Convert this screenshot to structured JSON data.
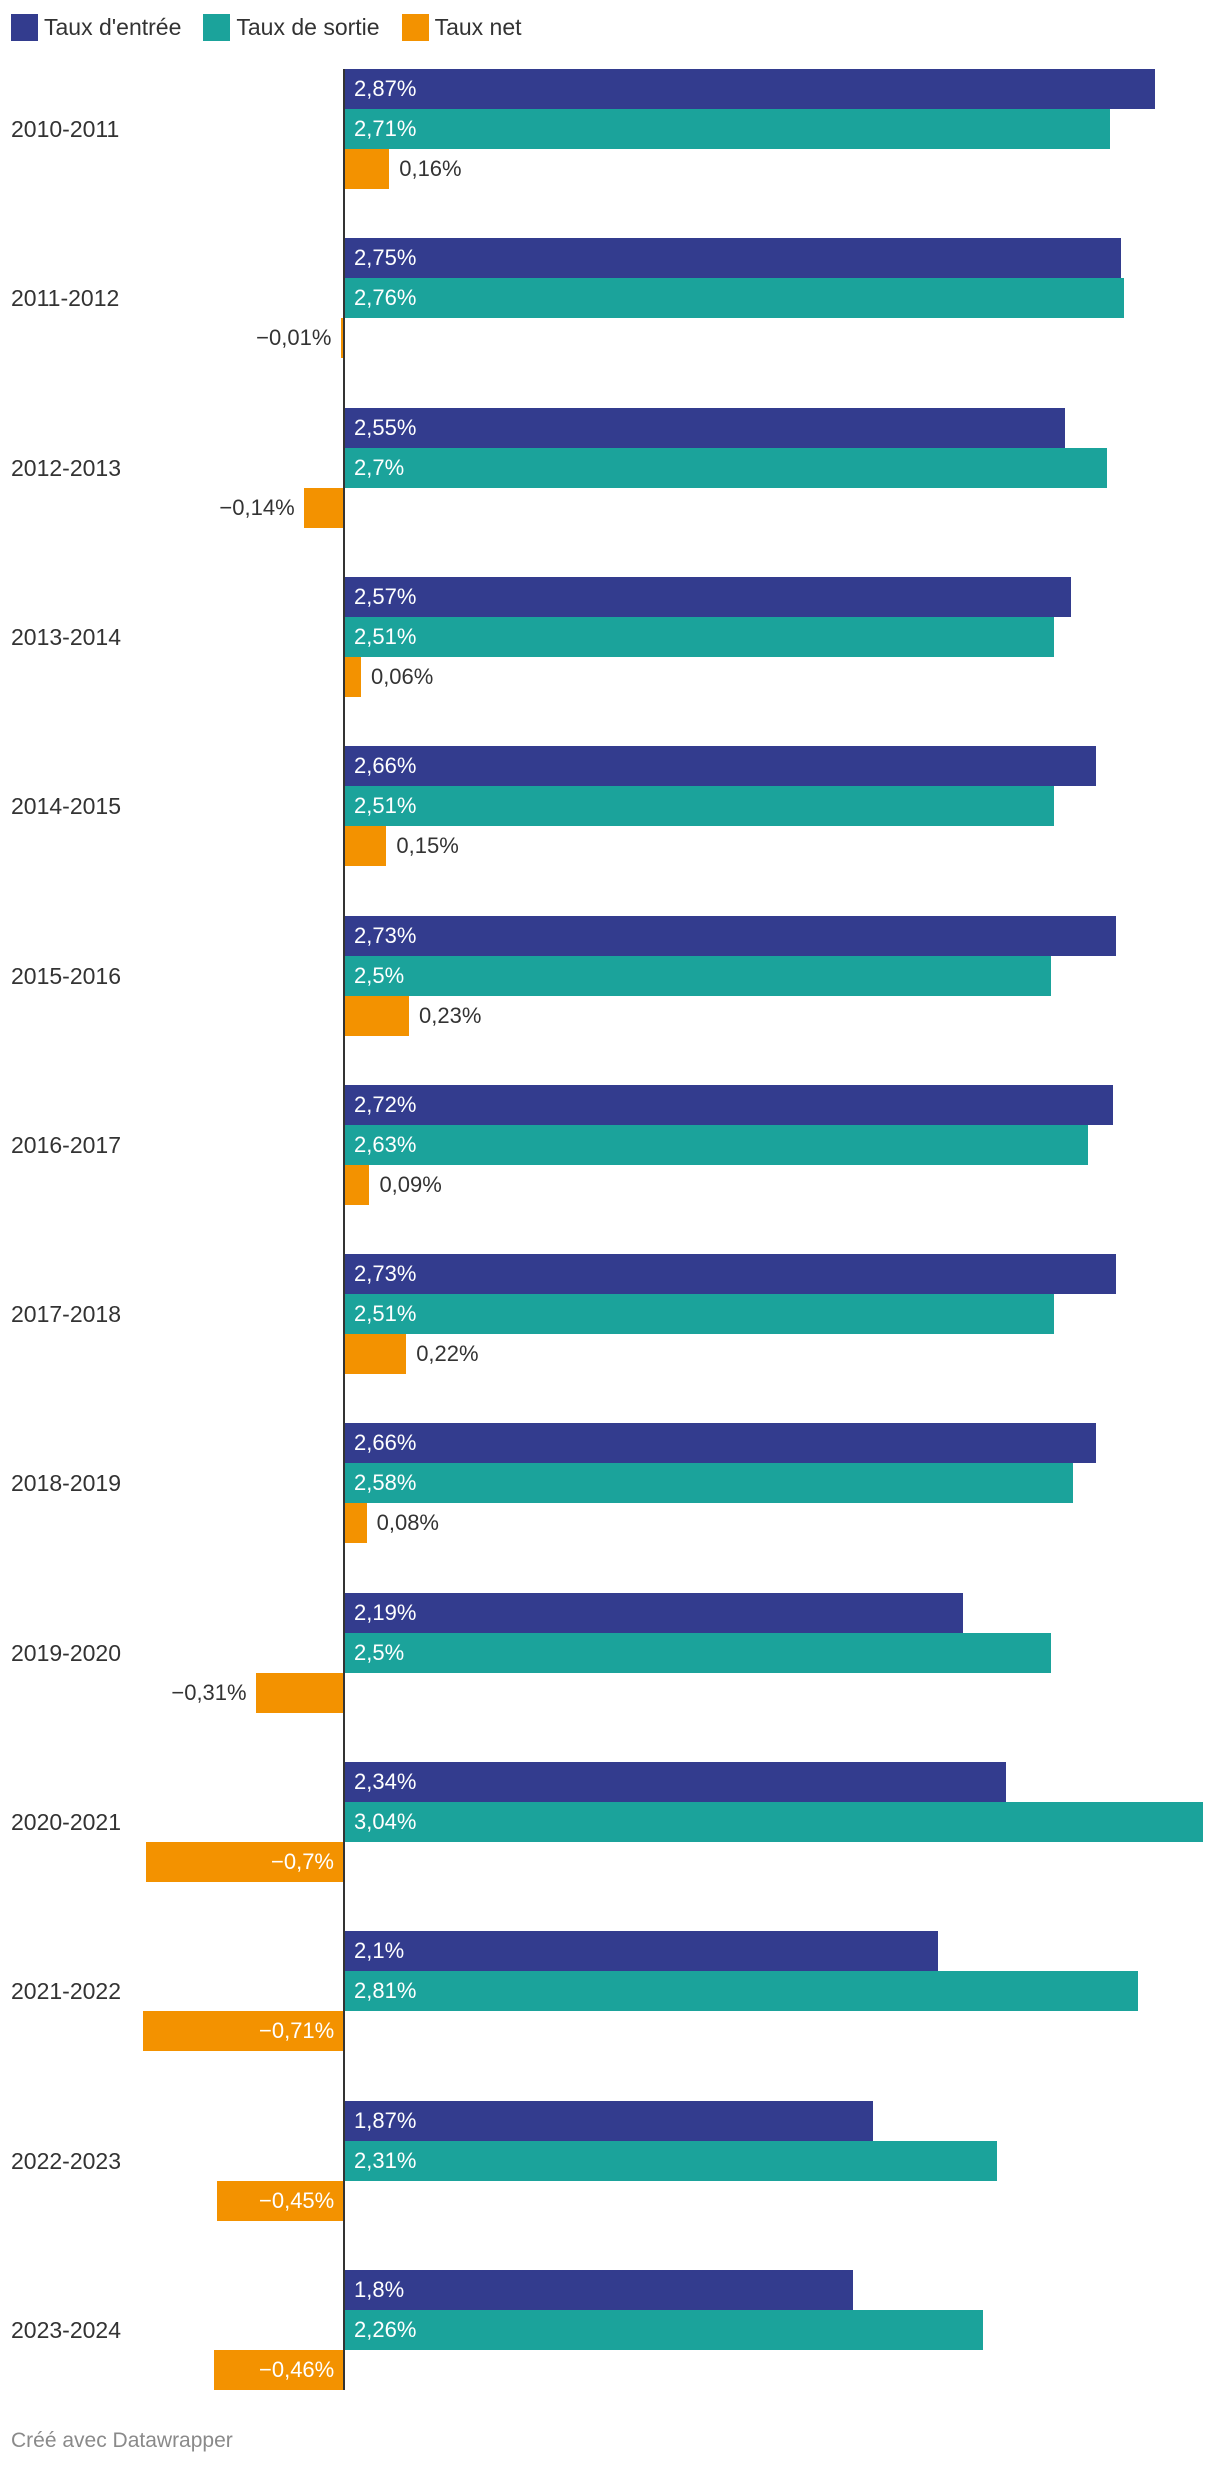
{
  "chart_data": {
    "type": "bar",
    "orientation": "horizontal",
    "legend_position": "top-left",
    "categories": [
      "2010-2011",
      "2011-2012",
      "2012-2013",
      "2013-2014",
      "2014-2015",
      "2015-2016",
      "2016-2017",
      "2017-2018",
      "2018-2019",
      "2019-2020",
      "2020-2021",
      "2021-2022",
      "2022-2023",
      "2023-2024"
    ],
    "xlim": [
      -0.71,
      3.04
    ],
    "series": [
      {
        "name": "Taux d'entrée",
        "color": "#333c8e",
        "values": [
          2.87,
          2.75,
          2.55,
          2.57,
          2.66,
          2.73,
          2.72,
          2.73,
          2.66,
          2.19,
          2.34,
          2.1,
          1.87,
          1.8
        ],
        "labels": [
          "2,87%",
          "2,75%",
          "2,55%",
          "2,57%",
          "2,66%",
          "2,73%",
          "2,72%",
          "2,73%",
          "2,66%",
          "2,19%",
          "2,34%",
          "2,1%",
          "1,87%",
          "1,8%"
        ]
      },
      {
        "name": "Taux de sortie",
        "color": "#1ba39b",
        "values": [
          2.71,
          2.76,
          2.7,
          2.51,
          2.51,
          2.5,
          2.63,
          2.51,
          2.58,
          2.5,
          3.04,
          2.81,
          2.31,
          2.26
        ],
        "labels": [
          "2,71%",
          "2,76%",
          "2,7%",
          "2,51%",
          "2,51%",
          "2,5%",
          "2,63%",
          "2,51%",
          "2,58%",
          "2,5%",
          "3,04%",
          "2,81%",
          "2,31%",
          "2,26%"
        ]
      },
      {
        "name": "Taux net",
        "color": "#f39200",
        "values": [
          0.16,
          -0.01,
          -0.14,
          0.06,
          0.15,
          0.23,
          0.09,
          0.22,
          0.08,
          -0.31,
          -0.7,
          -0.71,
          -0.45,
          -0.46
        ],
        "labels": [
          "0,16%",
          "−0,01%",
          "−0,14%",
          "0,06%",
          "0,15%",
          "0,23%",
          "0,09%",
          "0,22%",
          "0,08%",
          "−0,31%",
          "−0,7%",
          "−0,71%",
          "−0,45%",
          "−0,46%"
        ]
      }
    ]
  },
  "footer": {
    "credit": "Créé avec Datawrapper"
  }
}
